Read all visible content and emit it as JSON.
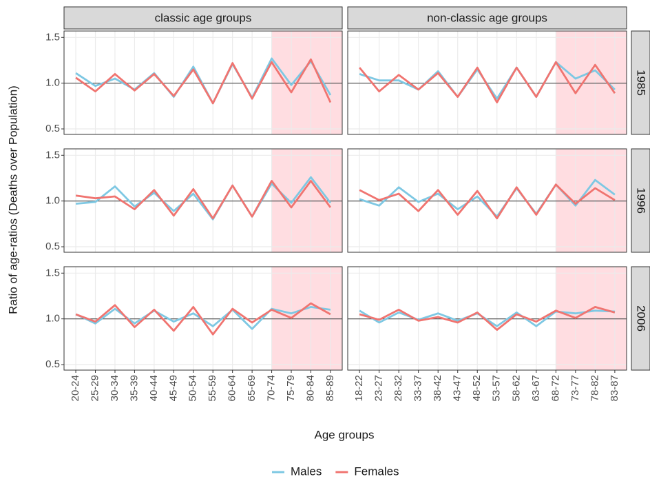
{
  "facets": {
    "columns": [
      "classic age groups",
      "non-classic age groups"
    ],
    "rows": [
      "1985",
      "1996",
      "2006"
    ]
  },
  "x_label": "Age groups",
  "y_label": "Ratio of age-ratios (Deaths over Population)",
  "chart_data": [
    {
      "type": "line",
      "categories": [
        "20-24",
        "25-29",
        "30-34",
        "35-39",
        "40-44",
        "45-49",
        "50-54",
        "55-59",
        "60-64",
        "65-69",
        "70-74",
        "75-79",
        "80-84",
        "85-89"
      ],
      "series": [
        {
          "name": "Males",
          "color": "#7ec8e3",
          "values": [
            1.11,
            0.97,
            1.05,
            0.93,
            1.11,
            0.85,
            1.18,
            0.78,
            1.21,
            0.84,
            1.27,
            0.98,
            1.24,
            0.87
          ]
        },
        {
          "name": "Females",
          "color": "#f07470",
          "values": [
            1.06,
            0.91,
            1.1,
            0.92,
            1.1,
            0.86,
            1.15,
            0.78,
            1.22,
            0.83,
            1.23,
            0.9,
            1.26,
            0.79
          ]
        }
      ],
      "ylim": [
        0.44,
        1.57
      ],
      "yticks": [
        {
          "value": 0.5,
          "label": "0.5"
        },
        {
          "value": 1,
          "label": "1.0"
        },
        {
          "value": 1.5,
          "label": "1.5"
        }
      ],
      "reference_line": 1,
      "shade_categories": [
        "70-74",
        "85-89"
      ],
      "shade_color": "#ffdde1",
      "grid": true
    },
    {
      "type": "line",
      "categories": [
        "18-22",
        "23-27",
        "28-32",
        "33-37",
        "38-42",
        "43-47",
        "48-52",
        "53-57",
        "58-62",
        "63-67",
        "68-72",
        "73-77",
        "78-82",
        "83-87"
      ],
      "series": [
        {
          "name": "Males",
          "color": "#7ec8e3",
          "values": [
            1.1,
            1.03,
            1.03,
            0.93,
            1.13,
            0.85,
            1.15,
            0.83,
            1.17,
            0.85,
            1.23,
            1.05,
            1.14,
            0.93
          ]
        },
        {
          "name": "Females",
          "color": "#f07470",
          "values": [
            1.17,
            0.91,
            1.09,
            0.93,
            1.11,
            0.85,
            1.17,
            0.79,
            1.17,
            0.85,
            1.23,
            0.89,
            1.2,
            0.89
          ]
        }
      ],
      "ylim": [
        0.44,
        1.57
      ],
      "yticks": [
        {
          "value": 0.5,
          "label": "0.5"
        },
        {
          "value": 1,
          "label": "1.0"
        },
        {
          "value": 1.5,
          "label": "1.5"
        }
      ],
      "reference_line": 1,
      "shade_categories": [
        "68-72",
        "83-87"
      ],
      "shade_color": "#ffdde1",
      "grid": true
    },
    {
      "type": "line",
      "categories": [
        "20-24",
        "25-29",
        "30-34",
        "35-39",
        "40-44",
        "45-49",
        "50-54",
        "55-59",
        "60-64",
        "65-69",
        "70-74",
        "75-79",
        "80-84",
        "85-89"
      ],
      "series": [
        {
          "name": "Males",
          "color": "#7ec8e3",
          "values": [
            0.97,
            0.99,
            1.16,
            0.94,
            1.09,
            0.89,
            1.08,
            0.8,
            1.17,
            0.83,
            1.19,
            0.98,
            1.26,
            0.98
          ]
        },
        {
          "name": "Females",
          "color": "#f07470",
          "values": [
            1.06,
            1.03,
            1.05,
            0.91,
            1.12,
            0.84,
            1.13,
            0.81,
            1.17,
            0.83,
            1.22,
            0.93,
            1.22,
            0.93
          ]
        }
      ],
      "ylim": [
        0.44,
        1.57
      ],
      "yticks": [
        {
          "value": 0.5,
          "label": "0.5"
        },
        {
          "value": 1,
          "label": "1.0"
        },
        {
          "value": 1.5,
          "label": "1.5"
        }
      ],
      "reference_line": 1,
      "shade_categories": [
        "70-74",
        "85-89"
      ],
      "shade_color": "#ffdde1",
      "grid": true
    },
    {
      "type": "line",
      "categories": [
        "18-22",
        "23-27",
        "28-32",
        "33-37",
        "38-42",
        "43-47",
        "48-52",
        "53-57",
        "58-62",
        "63-67",
        "68-72",
        "73-77",
        "78-82",
        "83-87"
      ],
      "series": [
        {
          "name": "Males",
          "color": "#7ec8e3",
          "values": [
            1.02,
            0.95,
            1.15,
            0.99,
            1.08,
            0.91,
            1.05,
            0.83,
            1.14,
            0.86,
            1.18,
            0.95,
            1.23,
            1.07
          ]
        },
        {
          "name": "Females",
          "color": "#f07470",
          "values": [
            1.12,
            1.01,
            1.08,
            0.89,
            1.12,
            0.85,
            1.11,
            0.81,
            1.15,
            0.85,
            1.18,
            0.97,
            1.14,
            1.01
          ]
        }
      ],
      "ylim": [
        0.44,
        1.57
      ],
      "yticks": [
        {
          "value": 0.5,
          "label": "0.5"
        },
        {
          "value": 1,
          "label": "1.0"
        },
        {
          "value": 1.5,
          "label": "1.5"
        }
      ],
      "reference_line": 1,
      "shade_categories": [
        "68-72",
        "83-87"
      ],
      "shade_color": "#ffdde1",
      "grid": true
    },
    {
      "type": "line",
      "categories": [
        "20-24",
        "25-29",
        "30-34",
        "35-39",
        "40-44",
        "45-49",
        "50-54",
        "55-59",
        "60-64",
        "65-69",
        "70-74",
        "75-79",
        "80-84",
        "85-89"
      ],
      "series": [
        {
          "name": "Males",
          "color": "#7ec8e3",
          "values": [
            1.05,
            0.95,
            1.11,
            0.95,
            1.09,
            0.97,
            1.06,
            0.92,
            1.1,
            0.89,
            1.11,
            1.06,
            1.13,
            1.1
          ]
        },
        {
          "name": "Females",
          "color": "#f07470",
          "values": [
            1.05,
            0.97,
            1.15,
            0.91,
            1.1,
            0.87,
            1.13,
            0.83,
            1.11,
            0.96,
            1.1,
            1.01,
            1.17,
            1.05
          ]
        }
      ],
      "ylim": [
        0.44,
        1.57
      ],
      "yticks": [
        {
          "value": 0.5,
          "label": "0.5"
        },
        {
          "value": 1,
          "label": "1.0"
        },
        {
          "value": 1.5,
          "label": "1.5"
        }
      ],
      "reference_line": 1,
      "shade_categories": [
        "70-74",
        "85-89"
      ],
      "shade_color": "#ffdde1",
      "grid": true
    },
    {
      "type": "line",
      "categories": [
        "18-22",
        "23-27",
        "28-32",
        "33-37",
        "38-42",
        "43-47",
        "48-52",
        "53-57",
        "58-62",
        "63-67",
        "68-72",
        "73-77",
        "78-82",
        "83-87"
      ],
      "series": [
        {
          "name": "Males",
          "color": "#7ec8e3",
          "values": [
            1.09,
            0.96,
            1.07,
            0.99,
            1.06,
            0.98,
            1.06,
            0.92,
            1.07,
            0.92,
            1.08,
            1.06,
            1.09,
            1.08
          ]
        },
        {
          "name": "Females",
          "color": "#f07470",
          "values": [
            1.05,
            0.99,
            1.1,
            0.98,
            1.02,
            0.96,
            1.07,
            0.88,
            1.05,
            0.97,
            1.09,
            1.01,
            1.13,
            1.07
          ]
        }
      ],
      "ylim": [
        0.44,
        1.57
      ],
      "yticks": [
        {
          "value": 0.5,
          "label": "0.5"
        },
        {
          "value": 1,
          "label": "1.0"
        },
        {
          "value": 1.5,
          "label": "1.5"
        }
      ],
      "reference_line": 1,
      "shade_categories": [
        "68-72",
        "83-87"
      ],
      "shade_color": "#ffdde1",
      "grid": true
    }
  ]
}
